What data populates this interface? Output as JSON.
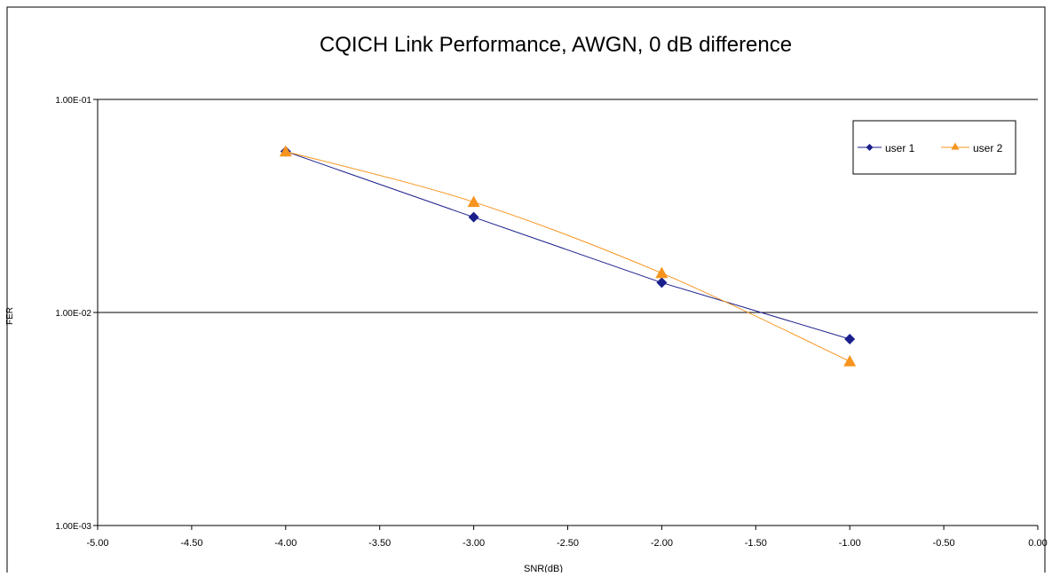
{
  "chart_data": {
    "type": "line",
    "title": "CQICH Link Performance, AWGN, 0 dB difference",
    "xlabel": "SNR(dB)",
    "ylabel": "FER",
    "xlim": [
      -5,
      0
    ],
    "ylim": [
      0.001,
      0.1
    ],
    "yscale": "log",
    "x_ticks": [
      -5.0,
      -4.5,
      -4.0,
      -3.5,
      -3.0,
      -2.5,
      -2.0,
      -1.5,
      -1.0,
      -0.5,
      0.0
    ],
    "x_tick_labels": [
      "-5.00",
      "-4.50",
      "-4.00",
      "-3.50",
      "-3.00",
      "-2.50",
      "-2.00",
      "-1.50",
      "-1.00",
      "-0.50",
      "0.00"
    ],
    "y_ticks": [
      0.1,
      0.01,
      0.001
    ],
    "y_tick_labels": [
      "1.00E-01",
      "1.00E-02",
      "1.00E-03"
    ],
    "grid": "horizontal major gridlines",
    "legend_position": "top-right",
    "series": [
      {
        "name": "user 1",
        "color": "#1a1f8c",
        "marker": "diamond",
        "x": [
          -4,
          -3,
          -2,
          -1
        ],
        "values": [
          0.057,
          0.028,
          0.0138,
          0.0075
        ]
      },
      {
        "name": "user 2",
        "color": "#f7941d",
        "marker": "triangle",
        "x": [
          -4,
          -3,
          -2,
          -1
        ],
        "values": [
          0.057,
          0.033,
          0.0153,
          0.0059
        ]
      }
    ]
  }
}
